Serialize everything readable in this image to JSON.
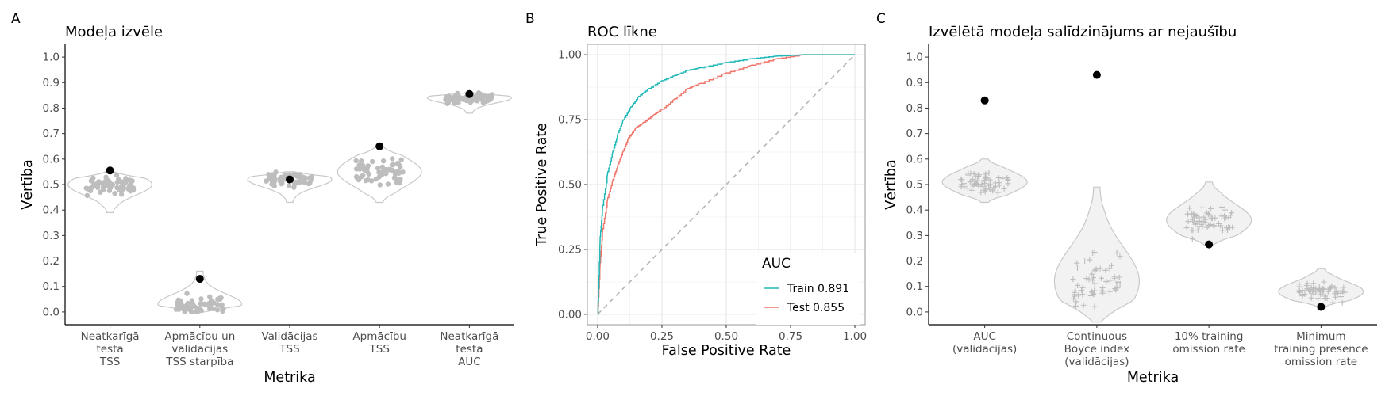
{
  "chart_data": [
    {
      "panel": "A",
      "type": "scatter",
      "title": "Modeļa izvēle",
      "xlabel": "Metrika",
      "ylabel": "Vērtība",
      "ylim": [
        -0.05,
        1.05
      ],
      "yticks": [
        "0.0",
        "0.1",
        "0.2",
        "0.3",
        "0.4",
        "0.5",
        "0.6",
        "0.7",
        "0.8",
        "0.9",
        "1.0"
      ],
      "grid": false,
      "categories": [
        [
          "Neatkarīgā",
          "testa",
          "TSS"
        ],
        [
          "Apmācību un",
          "validācijas",
          "TSS starpība"
        ],
        [
          "Validācijas",
          "TSS"
        ],
        [
          "Apmācību",
          "TSS"
        ],
        [
          "Neatkarīgā",
          "testa",
          "AUC"
        ]
      ],
      "selected_model": [
        0.555,
        0.13,
        0.52,
        0.65,
        0.855
      ],
      "distribution": [
        {
          "min": 0.39,
          "max": 0.55,
          "center": 0.5
        },
        {
          "min": 0.0,
          "max": 0.16,
          "center": 0.03
        },
        {
          "min": 0.43,
          "max": 0.55,
          "center": 0.52
        },
        {
          "min": 0.43,
          "max": 0.65,
          "center": 0.55
        },
        {
          "min": 0.78,
          "max": 0.86,
          "center": 0.84
        }
      ],
      "colors": {
        "points": "#bdbdbd",
        "violin": "#c8c8c8",
        "selected": "#000000"
      }
    },
    {
      "panel": "B",
      "type": "line",
      "title": "ROC līkne",
      "xlabel": "False Positive Rate",
      "ylabel": "True Positive Rate",
      "xlim": [
        0,
        1
      ],
      "ylim": [
        0,
        1
      ],
      "xticks": [
        "0.00",
        "0.25",
        "0.50",
        "0.75",
        "1.00"
      ],
      "yticks": [
        "0.00",
        "0.25",
        "0.50",
        "0.75",
        "1.00"
      ],
      "grid": true,
      "legend": {
        "title": "AUC",
        "position": "bottom-right"
      },
      "series": [
        {
          "name": "Train 0.891",
          "color": "#20b8b8",
          "x": [
            0,
            0.01,
            0.02,
            0.04,
            0.06,
            0.08,
            0.1,
            0.13,
            0.16,
            0.2,
            0.25,
            0.3,
            0.35,
            0.4,
            0.5,
            0.6,
            0.7,
            0.8,
            0.9,
            1.0
          ],
          "y": [
            0,
            0.3,
            0.42,
            0.55,
            0.63,
            0.7,
            0.75,
            0.8,
            0.84,
            0.87,
            0.9,
            0.92,
            0.94,
            0.95,
            0.97,
            0.985,
            0.995,
            1.0,
            1.0,
            1.0
          ]
        },
        {
          "name": "Test 0.855",
          "color": "#f0756b",
          "x": [
            0,
            0.01,
            0.02,
            0.04,
            0.06,
            0.08,
            0.1,
            0.12,
            0.15,
            0.18,
            0.22,
            0.25,
            0.3,
            0.35,
            0.4,
            0.5,
            0.6,
            0.7,
            0.8,
            0.9,
            1.0
          ],
          "y": [
            0,
            0.2,
            0.33,
            0.45,
            0.52,
            0.58,
            0.63,
            0.68,
            0.72,
            0.74,
            0.77,
            0.79,
            0.83,
            0.87,
            0.89,
            0.93,
            0.96,
            0.985,
            1.0,
            1.0,
            1.0
          ]
        }
      ],
      "reference_line": {
        "x": [
          0,
          1
        ],
        "y": [
          0,
          1
        ],
        "color": "#b5b5b5",
        "dash": true
      }
    },
    {
      "panel": "C",
      "type": "scatter",
      "title": "Izvēlētā modeļa salīdzinājums ar nejaušību",
      "xlabel": "Metrika",
      "ylabel": "Vērtība",
      "ylim": [
        -0.05,
        1.05
      ],
      "yticks": [
        "0.0",
        "0.1",
        "0.2",
        "0.3",
        "0.4",
        "0.5",
        "0.6",
        "0.7",
        "0.8",
        "0.9",
        "1.0"
      ],
      "grid": false,
      "categories": [
        [
          "AUC",
          "(validācijas)"
        ],
        [
          "Continuous",
          "Boyce index",
          "(validācijas)"
        ],
        [
          "10% training",
          "omission rate"
        ],
        [
          "Minimum",
          "training presence",
          "omission rate"
        ]
      ],
      "selected_model": [
        0.83,
        0.93,
        0.265,
        0.02
      ],
      "distribution": [
        {
          "min": 0.43,
          "max": 0.6,
          "center": 0.51
        },
        {
          "min": -0.04,
          "max": 0.49,
          "center": 0.12
        },
        {
          "min": 0.26,
          "max": 0.51,
          "center": 0.36
        },
        {
          "min": 0.02,
          "max": 0.17,
          "center": 0.08
        }
      ],
      "colors": {
        "points": "#bdbdbd",
        "violin": "#c8c8c8",
        "selected": "#000000"
      }
    }
  ]
}
